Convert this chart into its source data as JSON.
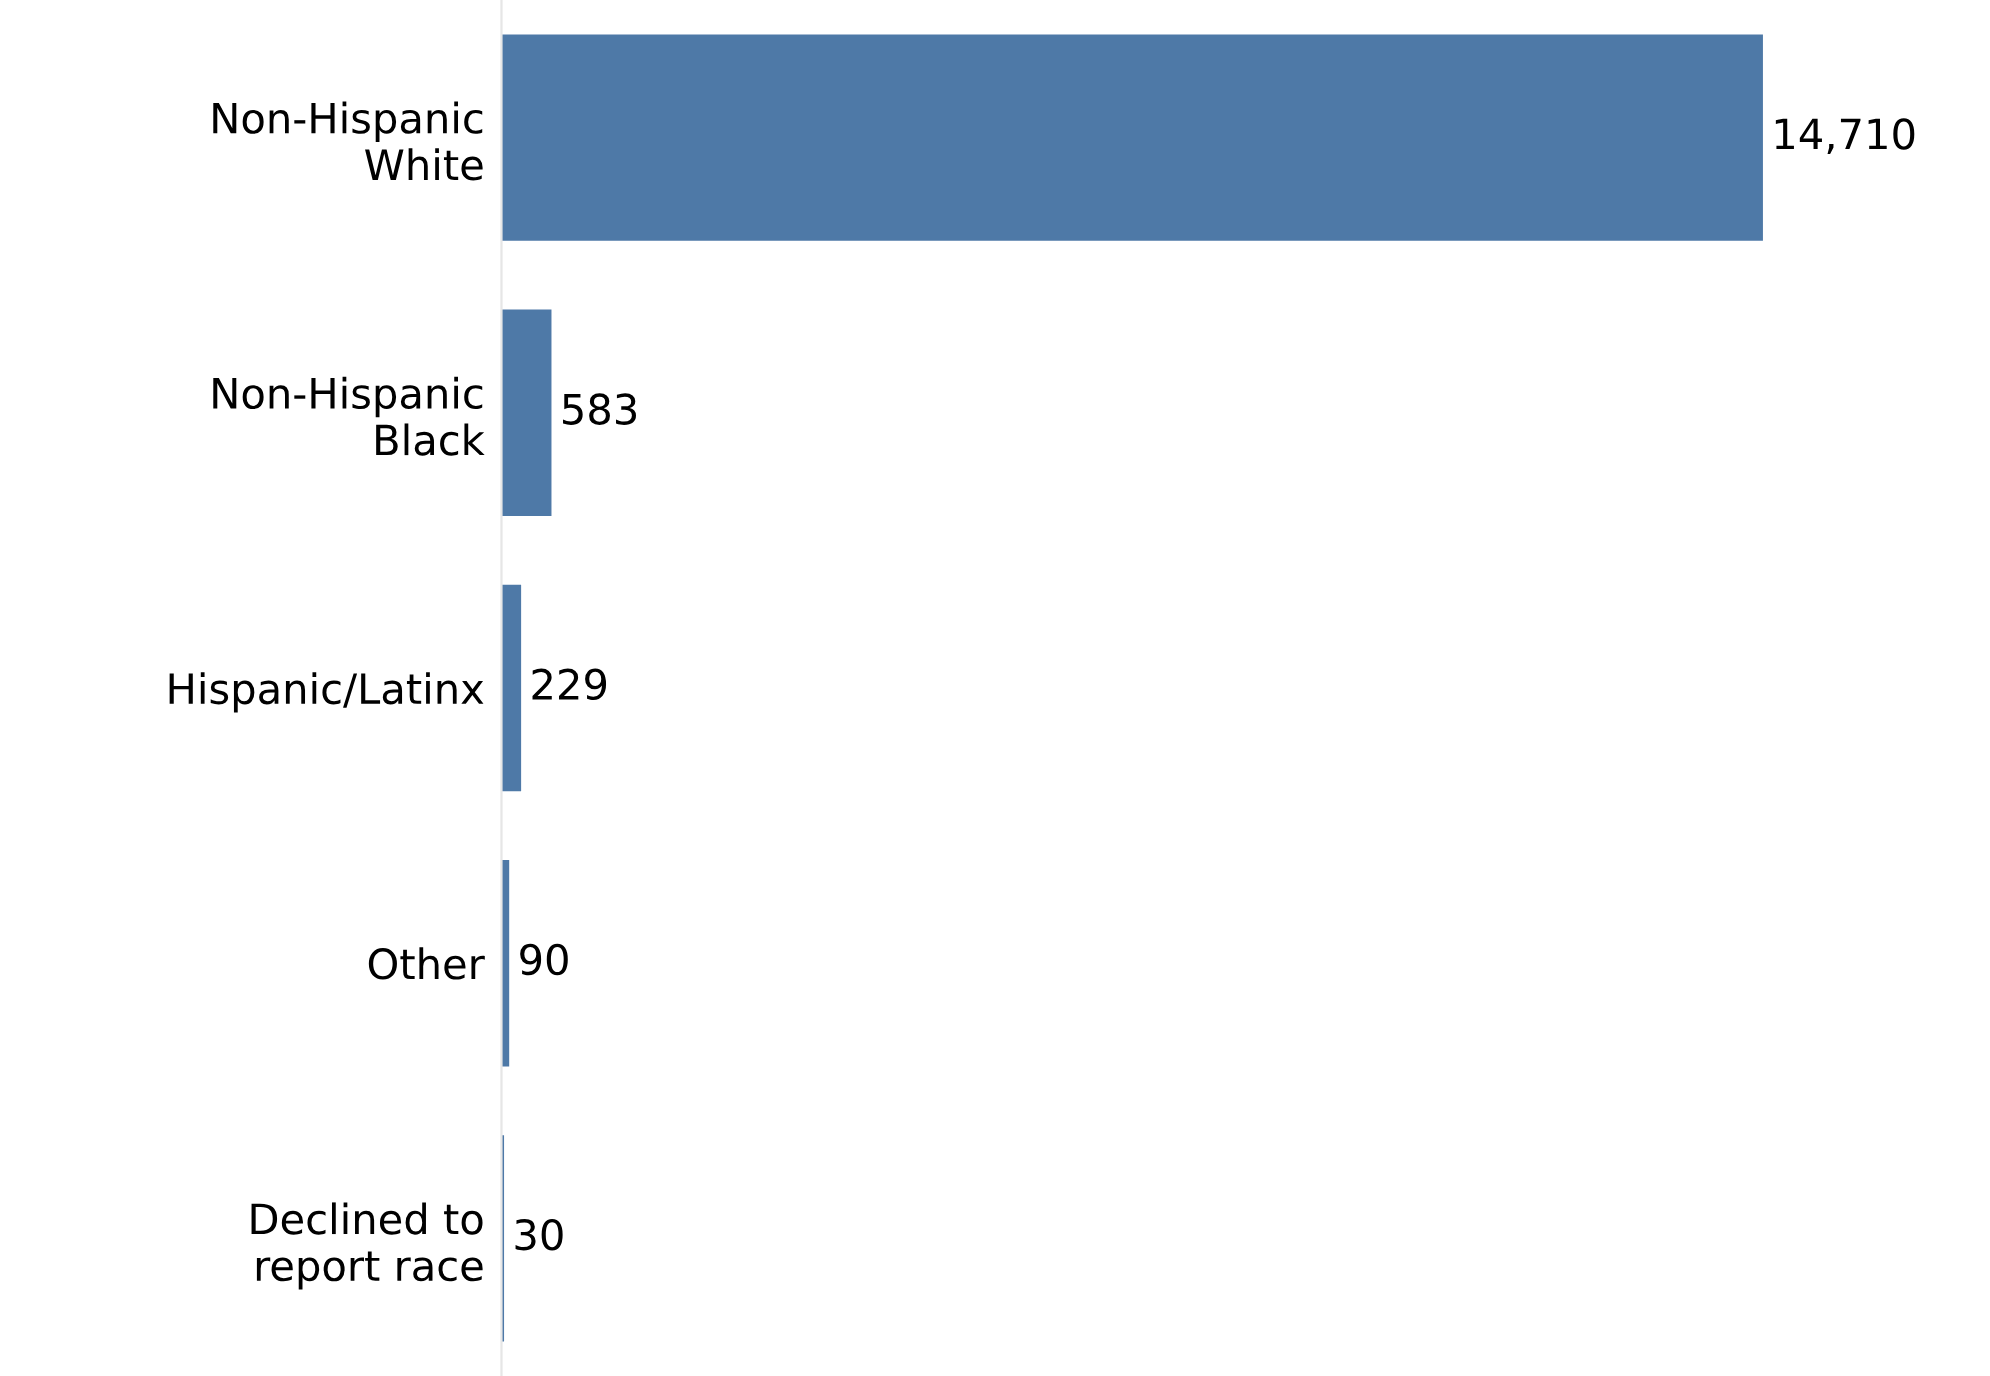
{
  "chart_data": {
    "type": "bar",
    "orientation": "horizontal",
    "categories": [
      "Non-Hispanic\nWhite",
      "Non-Hispanic\nBlack",
      "Hispanic/Latinx",
      "Other",
      "Declined to\nreport race"
    ],
    "values": [
      14710,
      583,
      229,
      90,
      30
    ],
    "color": "#4e79a7",
    "value_labels": [
      "14,710",
      "583",
      "229",
      "90",
      "30"
    ],
    "grid": false,
    "legend": false
  }
}
